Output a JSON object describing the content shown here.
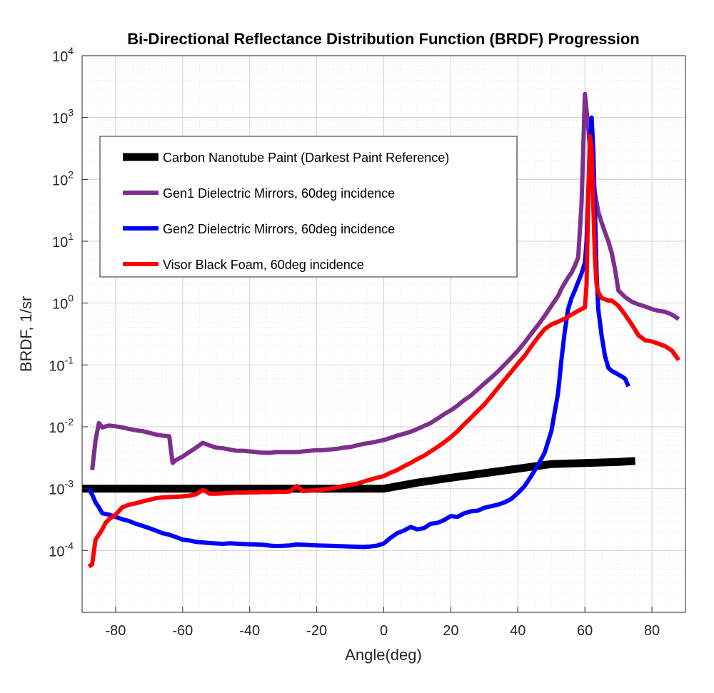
{
  "chart_data": {
    "type": "line",
    "title": "Bi-Directional Reflectance Distribution Function (BRDF) Progression",
    "xlabel": "Angle(deg)",
    "ylabel": "BRDF, 1/sr",
    "xlim": [
      -90,
      90
    ],
    "ylim": [
      1e-05,
      10000
    ],
    "yscale": "log",
    "grid": true,
    "minor_grid": true,
    "legend_position": "upper-left",
    "x_ticks": [
      -80,
      -60,
      -40,
      -20,
      0,
      20,
      40,
      60,
      80
    ],
    "y_ticks": [
      {
        "base": "10",
        "exp": "-4"
      },
      {
        "base": "10",
        "exp": "-3"
      },
      {
        "base": "10",
        "exp": "-2"
      },
      {
        "base": "10",
        "exp": "-1"
      },
      {
        "base": "10",
        "exp": "0"
      },
      {
        "base": "10",
        "exp": "1"
      },
      {
        "base": "10",
        "exp": "2"
      },
      {
        "base": "10",
        "exp": "3"
      },
      {
        "base": "10",
        "exp": "4"
      }
    ],
    "series": [
      {
        "name": "Carbon Nanotube Paint (Darkest Paint Reference)",
        "color": "#000000",
        "x": [
          -90,
          -60,
          -40,
          -20,
          0,
          10,
          20,
          30,
          40,
          50,
          60,
          70,
          75
        ],
        "y": [
          0.001,
          0.001,
          0.001,
          0.001,
          0.001,
          0.00125,
          0.0015,
          0.00178,
          0.0021,
          0.0025,
          0.0026,
          0.0027,
          0.0028
        ]
      },
      {
        "name": "Gen1 Dielectric Mirrors, 60deg incidence",
        "color": "#7e2f8e",
        "x": [
          -87,
          -86,
          -85,
          -84,
          -82,
          -80,
          -78,
          -76,
          -74,
          -72,
          -70,
          -68,
          -66,
          -64,
          -63.5,
          -63,
          -62,
          -60,
          -58,
          -56,
          -54,
          -52,
          -50,
          -48,
          -46,
          -44,
          -42,
          -40,
          -38,
          -36,
          -34,
          -32,
          -30,
          -28,
          -26,
          -24,
          -22,
          -20,
          -18,
          -16,
          -14,
          -12,
          -10,
          -8,
          -6,
          -4,
          -2,
          0,
          2,
          4,
          6,
          8,
          10,
          12,
          14,
          16,
          18,
          20,
          22,
          24,
          26,
          28,
          30,
          32,
          34,
          36,
          38,
          40,
          42,
          44,
          46,
          48,
          50,
          52,
          53,
          54,
          55,
          56,
          57,
          58,
          59,
          60,
          61,
          62,
          63,
          64,
          65,
          66,
          67,
          68,
          69,
          70,
          72,
          74,
          76,
          78,
          80,
          82,
          84,
          86,
          87,
          88
        ],
        "y": [
          0.002,
          0.006,
          0.0115,
          0.0098,
          0.0105,
          0.0102,
          0.0098,
          0.0092,
          0.0088,
          0.0085,
          0.008,
          0.0075,
          0.0072,
          0.007,
          0.0042,
          0.0026,
          0.0029,
          0.0033,
          0.0039,
          0.0046,
          0.0055,
          0.005,
          0.0046,
          0.0045,
          0.0043,
          0.0041,
          0.0041,
          0.004,
          0.0039,
          0.0038,
          0.0038,
          0.0039,
          0.0039,
          0.0039,
          0.0039,
          0.004,
          0.0041,
          0.0042,
          0.0042,
          0.0043,
          0.0044,
          0.0046,
          0.0047,
          0.005,
          0.0053,
          0.0055,
          0.0058,
          0.0061,
          0.0066,
          0.0072,
          0.0077,
          0.0083,
          0.0092,
          0.0103,
          0.0115,
          0.0135,
          0.016,
          0.0185,
          0.022,
          0.027,
          0.032,
          0.04,
          0.05,
          0.062,
          0.078,
          0.1,
          0.13,
          0.17,
          0.23,
          0.32,
          0.44,
          0.62,
          0.9,
          1.3,
          1.7,
          2.1,
          2.6,
          3.1,
          4,
          5.5,
          40,
          2400,
          700,
          130,
          60,
          30,
          20,
          14,
          10,
          6.5,
          3.5,
          1.6,
          1.25,
          1.05,
          0.95,
          0.88,
          0.8,
          0.75,
          0.72,
          0.65,
          0.6,
          0.55
        ]
      },
      {
        "name": "Gen2 Dielectric Mirrors, 60deg incidence",
        "color": "#0000ff",
        "x": [
          -88,
          -87,
          -86,
          -85,
          -84,
          -82,
          -80,
          -78,
          -76,
          -74,
          -72,
          -70,
          -68,
          -66,
          -64,
          -62,
          -60,
          -58,
          -56,
          -54,
          -52,
          -50,
          -48,
          -46,
          -44,
          -42,
          -40,
          -38,
          -36,
          -34,
          -32,
          -30,
          -28,
          -26,
          -24,
          -22,
          -20,
          -18,
          -16,
          -14,
          -12,
          -10,
          -8,
          -6,
          -4,
          -2,
          0,
          2,
          4,
          6,
          8,
          10,
          12,
          14,
          16,
          18,
          20,
          22,
          24,
          26,
          28,
          30,
          32,
          34,
          36,
          38,
          40,
          42,
          44,
          46,
          48,
          50,
          52,
          53,
          54,
          55,
          56,
          57,
          58,
          59,
          60,
          60.5,
          61,
          61.5,
          62,
          62.5,
          63,
          63.5,
          64,
          65,
          66,
          67,
          68,
          69,
          70,
          71,
          72,
          73
        ],
        "y": [
          0.001,
          0.0008,
          0.0006,
          0.0005,
          0.0004,
          0.00038,
          0.00035,
          0.00032,
          0.0003,
          0.00027,
          0.00025,
          0.00023,
          0.00021,
          0.00019,
          0.00018,
          0.000165,
          0.00015,
          0.000145,
          0.000138,
          0.000135,
          0.000132,
          0.00013,
          0.000128,
          0.000131,
          0.000129,
          0.000127,
          0.000126,
          0.000125,
          0.000124,
          0.00012,
          0.000118,
          0.000119,
          0.000121,
          0.000125,
          0.000124,
          0.000122,
          0.000121,
          0.00012,
          0.000119,
          0.000118,
          0.000117,
          0.000116,
          0.000115,
          0.000114,
          0.000116,
          0.00012,
          0.00013,
          0.00016,
          0.00019,
          0.00021,
          0.00024,
          0.00022,
          0.00023,
          0.00027,
          0.00028,
          0.00031,
          0.00036,
          0.00035,
          0.0004,
          0.00043,
          0.00044,
          0.00049,
          0.00052,
          0.00055,
          0.0006,
          0.00068,
          0.00085,
          0.0011,
          0.0016,
          0.0024,
          0.0038,
          0.0085,
          0.035,
          0.12,
          0.35,
          0.8,
          1.2,
          1.6,
          2.2,
          3,
          4.5,
          10,
          60,
          400,
          1000,
          300,
          30,
          3,
          0.8,
          0.3,
          0.14,
          0.09,
          0.08,
          0.075,
          0.07,
          0.065,
          0.06,
          0.045
        ]
      },
      {
        "name": "Visor Black Foam, 60deg incidence",
        "color": "#ff0000",
        "x": [
          -88,
          -87,
          -86,
          -85,
          -84,
          -83,
          -82,
          -80,
          -78,
          -76,
          -74,
          -72,
          -70,
          -68,
          -66,
          -64,
          -62,
          -60,
          -58,
          -56,
          -54,
          -53,
          -52,
          -50,
          -48,
          -46,
          -44,
          -42,
          -40,
          -38,
          -36,
          -34,
          -32,
          -30,
          -28,
          -26,
          -24,
          -22,
          -20,
          -18,
          -16,
          -14,
          -12,
          -10,
          -8,
          -6,
          -4,
          -2,
          0,
          2,
          4,
          6,
          8,
          10,
          12,
          14,
          16,
          18,
          20,
          22,
          24,
          26,
          28,
          30,
          32,
          34,
          36,
          38,
          40,
          42,
          44,
          46,
          48,
          50,
          52,
          54,
          56,
          58,
          59,
          60,
          60.5,
          61,
          61.5,
          62,
          62.5,
          63,
          63.5,
          64,
          65,
          66,
          67,
          68,
          69,
          70,
          72,
          74,
          76,
          78,
          80,
          82,
          84,
          86,
          88
        ],
        "y": [
          5.5e-05,
          6e-05,
          0.00015,
          0.00018,
          0.00022,
          0.00028,
          0.00032,
          0.00038,
          0.0005,
          0.00055,
          0.00058,
          0.00062,
          0.00066,
          0.0007,
          0.00072,
          0.00073,
          0.00074,
          0.00075,
          0.00077,
          0.00081,
          0.00095,
          0.0009,
          0.00083,
          0.00083,
          0.00084,
          0.00085,
          0.00086,
          0.00086,
          0.00087,
          0.00087,
          0.00088,
          0.00088,
          0.00089,
          0.00089,
          0.0009,
          0.0011,
          0.00091,
          0.00093,
          0.00095,
          0.00097,
          0.001,
          0.00105,
          0.0011,
          0.00115,
          0.0012,
          0.0013,
          0.0014,
          0.0015,
          0.0016,
          0.0018,
          0.002,
          0.0023,
          0.0026,
          0.003,
          0.0034,
          0.004,
          0.0047,
          0.0056,
          0.0068,
          0.0085,
          0.011,
          0.014,
          0.018,
          0.023,
          0.031,
          0.042,
          0.057,
          0.077,
          0.105,
          0.14,
          0.2,
          0.28,
          0.38,
          0.45,
          0.5,
          0.56,
          0.65,
          0.75,
          0.8,
          0.85,
          2,
          50,
          500,
          300,
          40,
          5,
          2,
          1.5,
          1.2,
          1.15,
          1.1,
          1.1,
          1,
          0.9,
          0.65,
          0.45,
          0.3,
          0.25,
          0.24,
          0.22,
          0.2,
          0.17,
          0.12
        ]
      }
    ]
  }
}
